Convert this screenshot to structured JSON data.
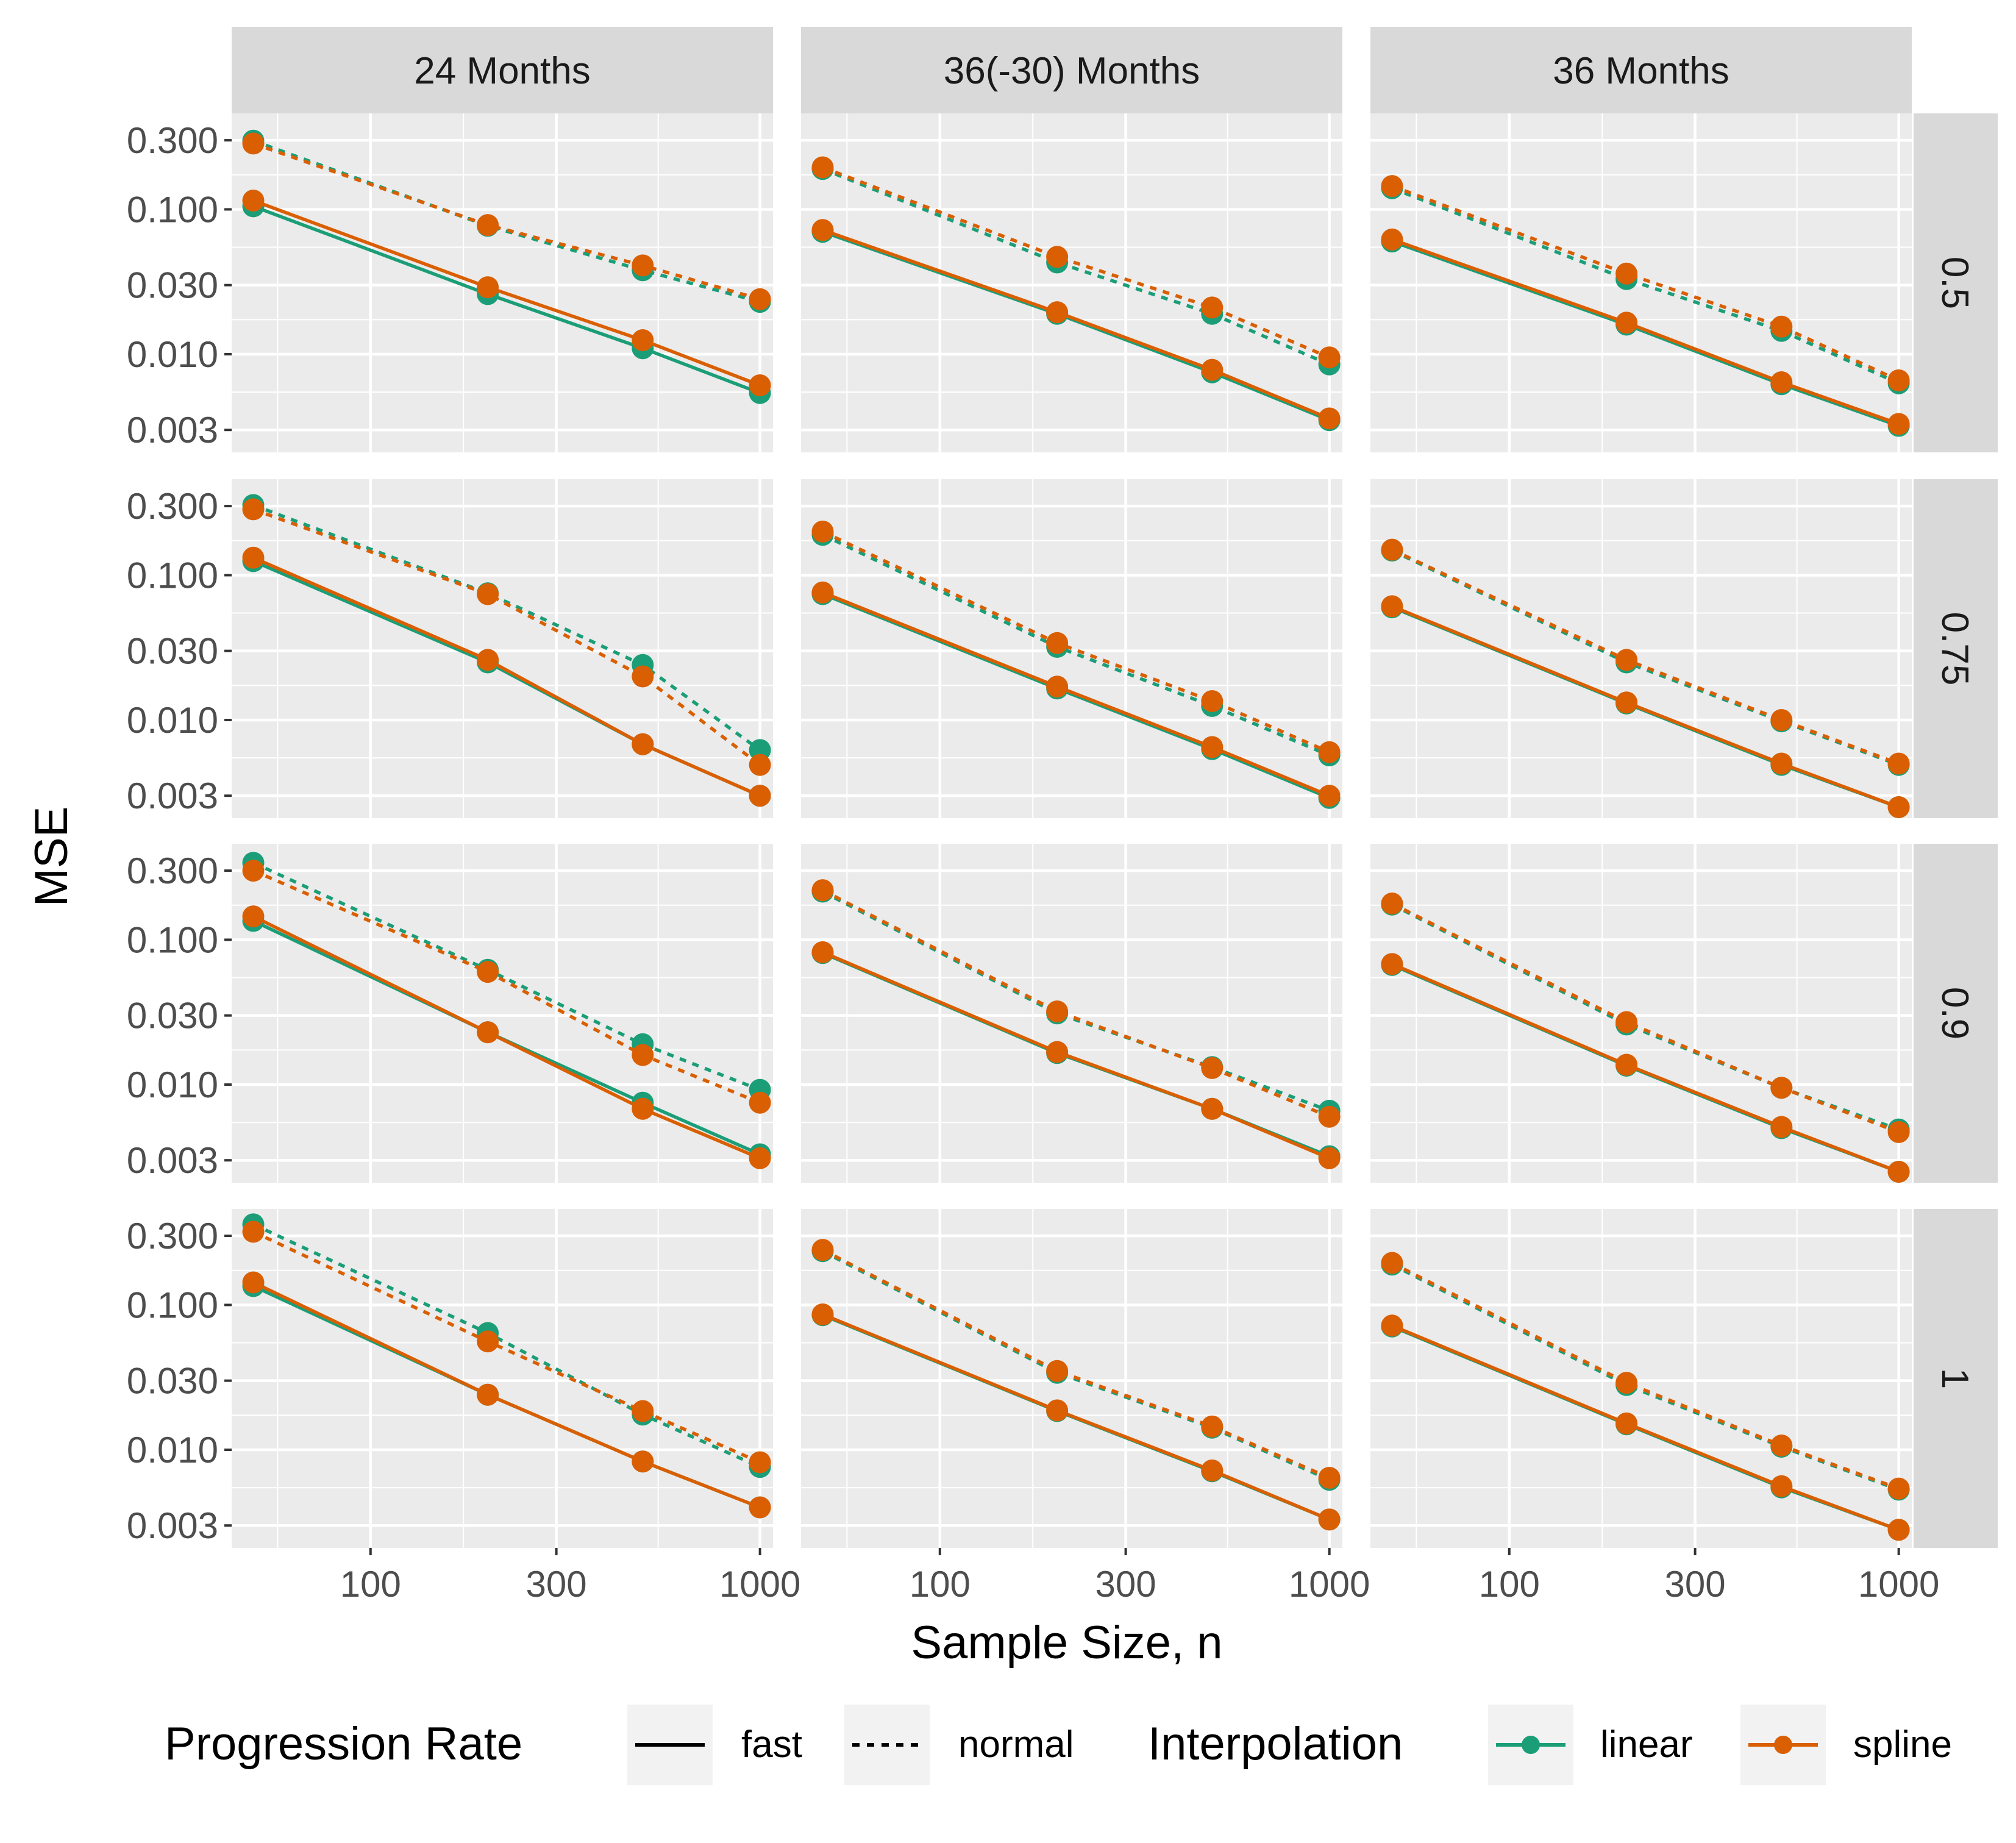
{
  "chart_data": {
    "type": "line",
    "xlabel": "Sample Size, n",
    "ylabel": "MSE",
    "x_scale": "log",
    "y_scale": "log",
    "xlim": [
      44,
      1080
    ],
    "ylim": [
      0.0021,
      0.46
    ],
    "x_ticks": [
      100,
      300,
      1000
    ],
    "x_tick_labels": [
      "100",
      "300",
      "1000"
    ],
    "y_ticks": [
      0.003,
      0.01,
      0.03,
      0.1,
      0.3
    ],
    "y_tick_labels": [
      "0.003",
      "0.010",
      "0.030",
      "0.100",
      "0.300"
    ],
    "x": [
      50,
      200,
      500,
      1000
    ],
    "columns": [
      "24 Months",
      "36(-30) Months",
      "36 Months"
    ],
    "rows": [
      "0.5",
      "0.75",
      "0.9",
      "1"
    ],
    "grid": true,
    "legend_position": "bottom",
    "legend": {
      "linetype_title": "Progression Rate",
      "linetype_items": [
        "fast",
        "normal"
      ],
      "color_title": "Interpolation",
      "color_items": [
        "linear",
        "spline"
      ]
    },
    "colors": {
      "linear": "#1b9e77",
      "spline": "#d95f02"
    },
    "panels": [
      {
        "row": "0.5",
        "column": "24 Months",
        "series": [
          {
            "interpolation": "linear",
            "rate": "fast",
            "values": [
              0.105,
              0.026,
              0.011,
              0.0054
            ]
          },
          {
            "interpolation": "spline",
            "rate": "fast",
            "values": [
              0.115,
              0.029,
              0.0125,
              0.0061
            ]
          },
          {
            "interpolation": "linear",
            "rate": "normal",
            "values": [
              0.298,
              0.077,
              0.038,
              0.023
            ]
          },
          {
            "interpolation": "spline",
            "rate": "normal",
            "values": [
              0.285,
              0.078,
              0.041,
              0.024
            ]
          }
        ]
      },
      {
        "row": "0.5",
        "column": "36(-30) Months",
        "series": [
          {
            "interpolation": "linear",
            "rate": "fast",
            "values": [
              0.07,
              0.019,
              0.0075,
              0.0035
            ]
          },
          {
            "interpolation": "spline",
            "rate": "fast",
            "values": [
              0.072,
              0.0195,
              0.0078,
              0.0036
            ]
          },
          {
            "interpolation": "linear",
            "rate": "normal",
            "values": [
              0.19,
              0.043,
              0.019,
              0.0085
            ]
          },
          {
            "interpolation": "spline",
            "rate": "normal",
            "values": [
              0.195,
              0.047,
              0.021,
              0.0095
            ]
          }
        ]
      },
      {
        "row": "0.5",
        "column": "36 Months",
        "series": [
          {
            "interpolation": "linear",
            "rate": "fast",
            "values": [
              0.06,
              0.016,
              0.0062,
              0.0032
            ]
          },
          {
            "interpolation": "spline",
            "rate": "fast",
            "values": [
              0.062,
              0.0165,
              0.0064,
              0.0033
            ]
          },
          {
            "interpolation": "linear",
            "rate": "normal",
            "values": [
              0.14,
              0.033,
              0.0145,
              0.0063
            ]
          },
          {
            "interpolation": "spline",
            "rate": "normal",
            "values": [
              0.145,
              0.036,
              0.0155,
              0.0066
            ]
          }
        ]
      },
      {
        "row": "0.75",
        "column": "24 Months",
        "series": [
          {
            "interpolation": "linear",
            "rate": "fast",
            "values": [
              0.125,
              0.025,
              0.0068,
              0.003
            ]
          },
          {
            "interpolation": "spline",
            "rate": "fast",
            "values": [
              0.132,
              0.026,
              0.0068,
              0.003
            ]
          },
          {
            "interpolation": "linear",
            "rate": "normal",
            "values": [
              0.305,
              0.075,
              0.024,
              0.0062
            ]
          },
          {
            "interpolation": "spline",
            "rate": "normal",
            "values": [
              0.285,
              0.074,
              0.02,
              0.0049
            ]
          }
        ]
      },
      {
        "row": "0.75",
        "column": "36(-30) Months",
        "series": [
          {
            "interpolation": "linear",
            "rate": "fast",
            "values": [
              0.074,
              0.0165,
              0.0063,
              0.0029
            ]
          },
          {
            "interpolation": "spline",
            "rate": "fast",
            "values": [
              0.076,
              0.017,
              0.0065,
              0.003
            ]
          },
          {
            "interpolation": "linear",
            "rate": "normal",
            "values": [
              0.19,
              0.032,
              0.0125,
              0.0057
            ]
          },
          {
            "interpolation": "spline",
            "rate": "normal",
            "values": [
              0.2,
              0.034,
              0.0135,
              0.006
            ]
          }
        ]
      },
      {
        "row": "0.75",
        "column": "36 Months",
        "series": [
          {
            "interpolation": "linear",
            "rate": "fast",
            "values": [
              0.06,
              0.013,
              0.0049,
              0.0025
            ]
          },
          {
            "interpolation": "spline",
            "rate": "fast",
            "values": [
              0.061,
              0.0132,
              0.005,
              0.0025
            ]
          },
          {
            "interpolation": "linear",
            "rate": "normal",
            "values": [
              0.148,
              0.025,
              0.0098,
              0.0049
            ]
          },
          {
            "interpolation": "spline",
            "rate": "normal",
            "values": [
              0.15,
              0.026,
              0.01,
              0.005
            ]
          }
        ]
      },
      {
        "row": "0.9",
        "column": "24 Months",
        "series": [
          {
            "interpolation": "linear",
            "rate": "fast",
            "values": [
              0.135,
              0.023,
              0.0075,
              0.0033
            ]
          },
          {
            "interpolation": "spline",
            "rate": "fast",
            "values": [
              0.145,
              0.023,
              0.0068,
              0.0031
            ]
          },
          {
            "interpolation": "linear",
            "rate": "normal",
            "values": [
              0.34,
              0.062,
              0.019,
              0.0092
            ]
          },
          {
            "interpolation": "spline",
            "rate": "normal",
            "values": [
              0.3,
              0.06,
              0.016,
              0.0075
            ]
          }
        ]
      },
      {
        "row": "0.9",
        "column": "36(-30) Months",
        "series": [
          {
            "interpolation": "linear",
            "rate": "fast",
            "values": [
              0.081,
              0.0165,
              0.0068,
              0.0032
            ]
          },
          {
            "interpolation": "spline",
            "rate": "fast",
            "values": [
              0.082,
              0.0168,
              0.0068,
              0.0031
            ]
          },
          {
            "interpolation": "linear",
            "rate": "normal",
            "values": [
              0.215,
              0.031,
              0.0132,
              0.0066
            ]
          },
          {
            "interpolation": "spline",
            "rate": "normal",
            "values": [
              0.22,
              0.032,
              0.013,
              0.006
            ]
          }
        ]
      },
      {
        "row": "0.9",
        "column": "36 Months",
        "series": [
          {
            "interpolation": "linear",
            "rate": "fast",
            "values": [
              0.067,
              0.0135,
              0.005,
              0.0025
            ]
          },
          {
            "interpolation": "spline",
            "rate": "fast",
            "values": [
              0.068,
              0.0137,
              0.0051,
              0.0025
            ]
          },
          {
            "interpolation": "linear",
            "rate": "normal",
            "values": [
              0.175,
              0.026,
              0.0095,
              0.0049
            ]
          },
          {
            "interpolation": "spline",
            "rate": "normal",
            "values": [
              0.178,
              0.027,
              0.0095,
              0.0047
            ]
          }
        ]
      },
      {
        "row": "1",
        "column": "24 Months",
        "series": [
          {
            "interpolation": "linear",
            "rate": "fast",
            "values": [
              0.135,
              0.024,
              0.0083,
              0.004
            ]
          },
          {
            "interpolation": "spline",
            "rate": "fast",
            "values": [
              0.143,
              0.024,
              0.0083,
              0.004
            ]
          },
          {
            "interpolation": "linear",
            "rate": "normal",
            "values": [
              0.36,
              0.064,
              0.0175,
              0.0076
            ]
          },
          {
            "interpolation": "spline",
            "rate": "normal",
            "values": [
              0.32,
              0.056,
              0.0185,
              0.0082
            ]
          }
        ]
      },
      {
        "row": "1",
        "column": "36(-30) Months",
        "series": [
          {
            "interpolation": "linear",
            "rate": "fast",
            "values": [
              0.085,
              0.0185,
              0.0071,
              0.0033
            ]
          },
          {
            "interpolation": "spline",
            "rate": "fast",
            "values": [
              0.086,
              0.0187,
              0.0072,
              0.0033
            ]
          },
          {
            "interpolation": "linear",
            "rate": "normal",
            "values": [
              0.235,
              0.034,
              0.0142,
              0.0062
            ]
          },
          {
            "interpolation": "spline",
            "rate": "normal",
            "values": [
              0.24,
              0.035,
              0.0145,
              0.0064
            ]
          }
        ]
      },
      {
        "row": "1",
        "column": "36 Months",
        "series": [
          {
            "interpolation": "linear",
            "rate": "fast",
            "values": [
              0.071,
              0.015,
              0.0055,
              0.0028
            ]
          },
          {
            "interpolation": "spline",
            "rate": "fast",
            "values": [
              0.072,
              0.0152,
              0.0056,
              0.0028
            ]
          },
          {
            "interpolation": "linear",
            "rate": "normal",
            "values": [
              0.19,
              0.028,
              0.0105,
              0.0053
            ]
          },
          {
            "interpolation": "spline",
            "rate": "normal",
            "values": [
              0.195,
              0.029,
              0.0107,
              0.0054
            ]
          }
        ]
      }
    ]
  }
}
